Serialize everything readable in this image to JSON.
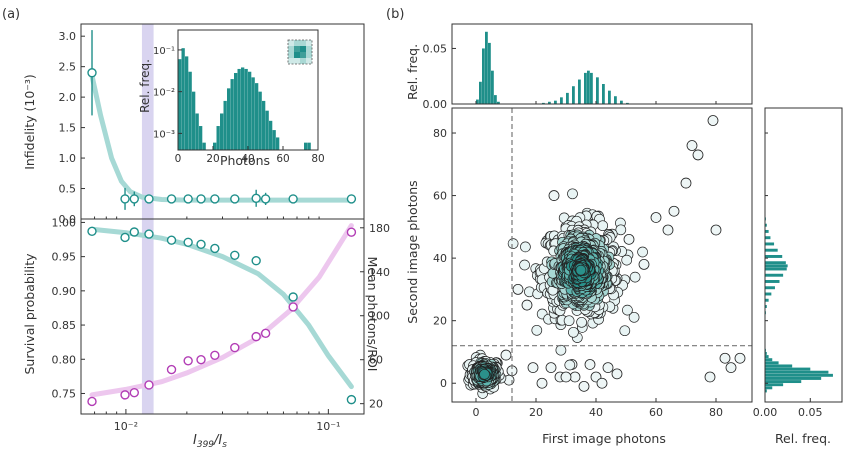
{
  "colors": {
    "teal": "#1f8f8a",
    "teal_light": "#a6d9d5",
    "lavender": "#d9d4f0",
    "pink_fit": "#edc7ee",
    "magenta": "#b23db5",
    "grid_dash": "#777777"
  },
  "panel_labels": {
    "a": "(a)",
    "b": "(b)"
  },
  "chart_data": [
    {
      "id": "infidelity",
      "type": "scatter",
      "title": "",
      "xlabel": "",
      "ylabel": "Infidelity (10⁻³)",
      "x_scale": "log",
      "xlim": [
        0.006,
        0.15
      ],
      "ylim": [
        0.0,
        3.2
      ],
      "yticks": [
        0.0,
        0.5,
        1.0,
        1.5,
        2.0,
        2.5,
        3.0
      ],
      "ytick_labels": [
        "0.0",
        "0.5",
        "1.0",
        "1.5",
        "2.0",
        "2.5",
        "3.0"
      ],
      "highlight_band": [
        0.012,
        0.0137
      ],
      "points": [
        {
          "x": 0.0068,
          "y": 2.4,
          "err": 0.7
        },
        {
          "x": 0.0099,
          "y": 0.33,
          "err": 0.18
        },
        {
          "x": 0.011,
          "y": 0.33,
          "err": 0.12
        },
        {
          "x": 0.013,
          "y": 0.33,
          "err": 0.05
        },
        {
          "x": 0.0168,
          "y": 0.33,
          "err": 0.05
        },
        {
          "x": 0.0203,
          "y": 0.33,
          "err": 0.05
        },
        {
          "x": 0.0235,
          "y": 0.33,
          "err": 0.05
        },
        {
          "x": 0.0275,
          "y": 0.33,
          "err": 0.05
        },
        {
          "x": 0.0345,
          "y": 0.33,
          "err": 0.05
        },
        {
          "x": 0.044,
          "y": 0.34,
          "err": 0.14
        },
        {
          "x": 0.049,
          "y": 0.33,
          "err": 0.1
        },
        {
          "x": 0.067,
          "y": 0.33,
          "err": 0.06
        },
        {
          "x": 0.13,
          "y": 0.33,
          "err": 0.05
        }
      ],
      "fit": [
        [
          0.0068,
          2.35
        ],
        [
          0.0075,
          1.7
        ],
        [
          0.0085,
          1.0
        ],
        [
          0.0095,
          0.62
        ],
        [
          0.0105,
          0.45
        ],
        [
          0.012,
          0.36
        ],
        [
          0.015,
          0.32
        ],
        [
          0.02,
          0.31
        ],
        [
          0.05,
          0.31
        ],
        [
          0.13,
          0.31
        ]
      ]
    },
    {
      "id": "inset_histogram",
      "type": "bar",
      "title": "",
      "xlabel": "Photons",
      "ylabel": "Rel. freq.",
      "y_scale": "log",
      "xlim": [
        0,
        80
      ],
      "ylim": [
        0.0004,
        0.3
      ],
      "xticks": [
        0,
        20,
        40,
        60,
        80
      ],
      "yticks": [
        0.001,
        0.01,
        0.1
      ],
      "ytick_labels": [
        "10⁻³",
        "10⁻²",
        "10⁻¹"
      ],
      "bin_width": 2,
      "bins": [
        [
          0,
          0.06
        ],
        [
          2,
          0.11
        ],
        [
          4,
          0.07
        ],
        [
          6,
          0.03
        ],
        [
          8,
          0.01
        ],
        [
          10,
          0.003
        ],
        [
          12,
          0.0015
        ],
        [
          14,
          0.0006
        ],
        [
          20,
          0.0006
        ],
        [
          22,
          0.0015
        ],
        [
          24,
          0.003
        ],
        [
          26,
          0.006
        ],
        [
          28,
          0.012
        ],
        [
          30,
          0.02
        ],
        [
          32,
          0.028
        ],
        [
          34,
          0.035
        ],
        [
          36,
          0.038
        ],
        [
          38,
          0.035
        ],
        [
          40,
          0.03
        ],
        [
          42,
          0.022
        ],
        [
          44,
          0.016
        ],
        [
          46,
          0.01
        ],
        [
          48,
          0.006
        ],
        [
          50,
          0.0035
        ],
        [
          52,
          0.002
        ],
        [
          54,
          0.0012
        ],
        [
          56,
          0.0008
        ],
        [
          72,
          0.0006
        ],
        [
          74,
          0.0006
        ]
      ]
    },
    {
      "id": "survival",
      "type": "scatter",
      "title": "",
      "xlabel": "I₃₉₉/Iₛ",
      "ylabel": "Survival probability",
      "y2label": "Mean photons/ROI",
      "x_scale": "log",
      "xlim": [
        0.006,
        0.15
      ],
      "ylim": [
        0.72,
        1.005
      ],
      "y2lim": [
        10.6,
        188
      ],
      "xticks": [
        0.01,
        0.1
      ],
      "xtick_labels": [
        "10⁻²",
        "10⁻¹"
      ],
      "yticks": [
        0.75,
        0.8,
        0.85,
        0.9,
        0.95,
        1.0
      ],
      "ytick_labels": [
        "0.75",
        "0.80",
        "0.85",
        "0.90",
        "0.95",
        "1.00"
      ],
      "y2ticks": [
        20,
        60,
        100,
        140,
        180
      ],
      "highlight_band": [
        0.012,
        0.0137
      ],
      "series": [
        {
          "name": "",
          "axis": "left",
          "points": [
            [
              0.0068,
              0.987
            ],
            [
              0.0099,
              0.978
            ],
            [
              0.011,
              0.986
            ],
            [
              0.013,
              0.983
            ],
            [
              0.0168,
              0.974
            ],
            [
              0.0203,
              0.971
            ],
            [
              0.0235,
              0.968
            ],
            [
              0.0275,
              0.962
            ],
            [
              0.0345,
              0.952
            ],
            [
              0.044,
              0.944
            ],
            [
              0.067,
              0.891
            ],
            [
              0.13,
              0.741
            ]
          ],
          "fit": [
            [
              0.0068,
              0.99
            ],
            [
              0.01,
              0.985
            ],
            [
              0.015,
              0.977
            ],
            [
              0.02,
              0.968
            ],
            [
              0.03,
              0.95
            ],
            [
              0.045,
              0.925
            ],
            [
              0.06,
              0.895
            ],
            [
              0.08,
              0.85
            ],
            [
              0.1,
              0.805
            ],
            [
              0.13,
              0.76
            ]
          ]
        },
        {
          "name": "",
          "axis": "right",
          "points": [
            [
              0.0068,
              22
            ],
            [
              0.0099,
              28
            ],
            [
              0.011,
              30
            ],
            [
              0.013,
              37
            ],
            [
              0.0168,
              51
            ],
            [
              0.0203,
              59
            ],
            [
              0.0235,
              60
            ],
            [
              0.0275,
              64
            ],
            [
              0.0345,
              71
            ],
            [
              0.044,
              81
            ],
            [
              0.049,
              84
            ],
            [
              0.067,
              108
            ],
            [
              0.13,
              176
            ]
          ],
          "fit": [
            [
              0.0068,
              28
            ],
            [
              0.01,
              33
            ],
            [
              0.015,
              40
            ],
            [
              0.02,
              48
            ],
            [
              0.03,
              62
            ],
            [
              0.045,
              80
            ],
            [
              0.065,
              105
            ],
            [
              0.09,
              135
            ],
            [
              0.13,
              182
            ]
          ]
        }
      ]
    },
    {
      "id": "top_hist",
      "type": "bar",
      "title": "",
      "xlabel": "",
      "ylabel": "Rel. freq.",
      "xlim": [
        -8,
        92
      ],
      "ylim": [
        0,
        0.072
      ],
      "yticks": [
        0.0,
        0.05
      ],
      "ytick_labels": [
        "0.00",
        "0.05"
      ],
      "bin_width": 1,
      "bins": [
        [
          0,
          0.004
        ],
        [
          1,
          0.02
        ],
        [
          2,
          0.05
        ],
        [
          3,
          0.065
        ],
        [
          4,
          0.055
        ],
        [
          5,
          0.03
        ],
        [
          6,
          0.008
        ],
        [
          7,
          0.002
        ],
        [
          22,
          0.001
        ],
        [
          24,
          0.002
        ],
        [
          26,
          0.003
        ],
        [
          28,
          0.006
        ],
        [
          30,
          0.01
        ],
        [
          32,
          0.016
        ],
        [
          34,
          0.022
        ],
        [
          36,
          0.028
        ],
        [
          37,
          0.03
        ],
        [
          38,
          0.028
        ],
        [
          40,
          0.024
        ],
        [
          42,
          0.018
        ],
        [
          44,
          0.012
        ],
        [
          46,
          0.007
        ],
        [
          48,
          0.003
        ],
        [
          50,
          0.001
        ]
      ]
    },
    {
      "id": "scatter",
      "type": "scatter",
      "title": "",
      "xlabel": "First image photons",
      "ylabel": "Second image photons",
      "xlim": [
        -8,
        92
      ],
      "ylim": [
        -6,
        88
      ],
      "xticks": [
        0,
        20,
        40,
        60,
        80
      ],
      "yticks": [
        0,
        20,
        40,
        60,
        80
      ],
      "threshold_x": 12,
      "threshold_y": 12,
      "clusters": [
        {
          "cx": 3,
          "cy": 3,
          "sx": 2.5,
          "sy": 2.4,
          "n": 160
        },
        {
          "cx": 35,
          "cy": 36,
          "sx": 6.5,
          "sy": 7.5,
          "n": 520
        }
      ],
      "outliers": [
        [
          79,
          84
        ],
        [
          74,
          73
        ],
        [
          72,
          76
        ],
        [
          70,
          64
        ],
        [
          66,
          55
        ],
        [
          64,
          49
        ],
        [
          60,
          53
        ],
        [
          80,
          49
        ],
        [
          78,
          2
        ],
        [
          83,
          8
        ],
        [
          85,
          5
        ],
        [
          88,
          8
        ],
        [
          22,
          0
        ],
        [
          25,
          5
        ],
        [
          28,
          2
        ],
        [
          32,
          6
        ],
        [
          33,
          2
        ],
        [
          36,
          -1
        ],
        [
          40,
          2
        ],
        [
          44,
          5
        ],
        [
          47,
          3
        ],
        [
          30,
          2
        ],
        [
          11,
          1
        ],
        [
          10,
          9
        ],
        [
          26,
          60
        ],
        [
          14,
          30
        ],
        [
          17,
          25
        ],
        [
          51,
          46
        ],
        [
          56,
          38
        ],
        [
          30,
          50
        ],
        [
          12,
          4
        ],
        [
          19,
          5
        ],
        [
          42,
          0
        ],
        [
          38,
          6
        ]
      ]
    },
    {
      "id": "right_hist",
      "type": "bar",
      "orientation": "horizontal",
      "title": "",
      "xlabel": "Rel. freq.",
      "ylabel": "",
      "ylim": [
        -6,
        88
      ],
      "xlim": [
        0,
        0.085
      ],
      "xticks": [
        0.0,
        0.05
      ],
      "xtick_labels": [
        "0.00",
        "0.05"
      ],
      "bin_width": 1,
      "bins": [
        [
          -3,
          0.002
        ],
        [
          -2,
          0.008
        ],
        [
          -1,
          0.02
        ],
        [
          0,
          0.04
        ],
        [
          1,
          0.062
        ],
        [
          2,
          0.075
        ],
        [
          3,
          0.07
        ],
        [
          4,
          0.05
        ],
        [
          5,
          0.03
        ],
        [
          6,
          0.015
        ],
        [
          7,
          0.008
        ],
        [
          8,
          0.004
        ],
        [
          9,
          0.002
        ],
        [
          10,
          0.001
        ],
        [
          22,
          0.001
        ],
        [
          24,
          0.002
        ],
        [
          26,
          0.004
        ],
        [
          28,
          0.007
        ],
        [
          30,
          0.011
        ],
        [
          32,
          0.016
        ],
        [
          34,
          0.02
        ],
        [
          36,
          0.024
        ],
        [
          37,
          0.025
        ],
        [
          38,
          0.023
        ],
        [
          40,
          0.019
        ],
        [
          42,
          0.014
        ],
        [
          44,
          0.01
        ],
        [
          46,
          0.006
        ],
        [
          48,
          0.004
        ],
        [
          50,
          0.002
        ],
        [
          52,
          0.001
        ],
        [
          55,
          0.0005
        ]
      ]
    }
  ]
}
